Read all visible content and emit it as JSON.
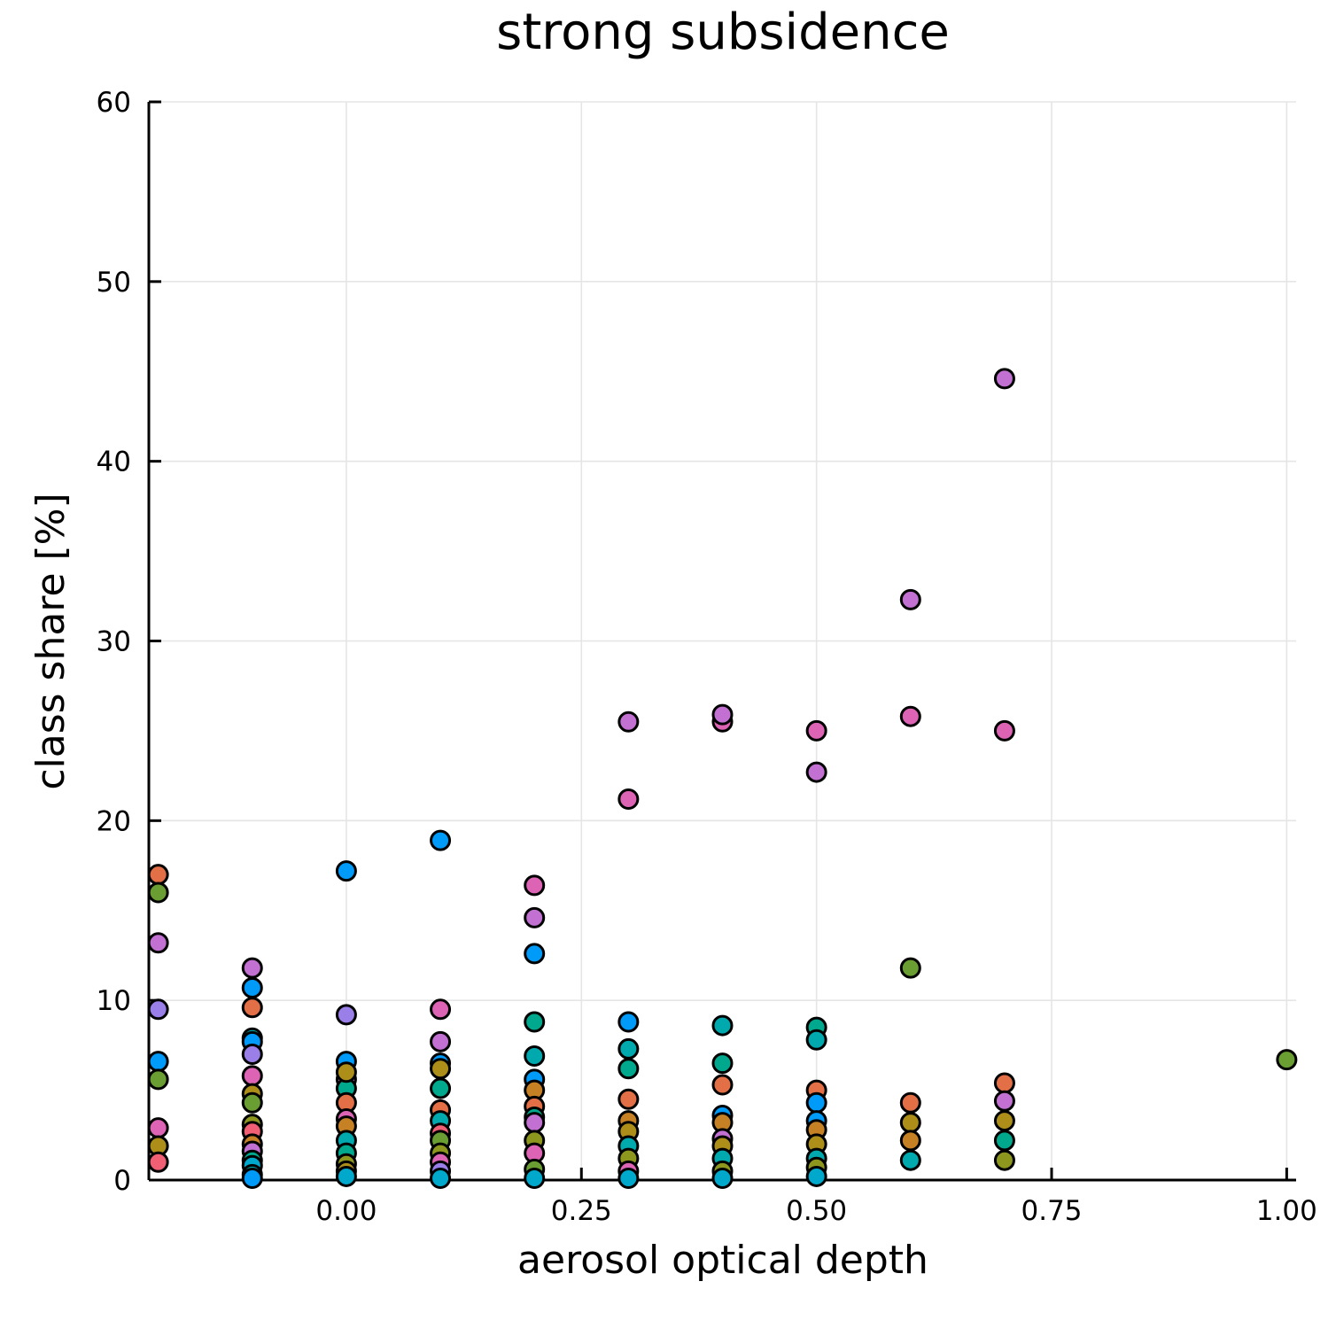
{
  "chart_data": {
    "type": "scatter",
    "title": "strong subsidence",
    "xlabel": "aerosol optical depth",
    "ylabel": "class share [%]",
    "xlim": [
      -0.21,
      1.01
    ],
    "ylim": [
      0,
      60
    ],
    "x_ticks": [
      {
        "value": 0.0,
        "label": "0.00"
      },
      {
        "value": 0.25,
        "label": "0.25"
      },
      {
        "value": 0.5,
        "label": "0.50"
      },
      {
        "value": 0.75,
        "label": "0.75"
      },
      {
        "value": 1.0,
        "label": "1.00"
      }
    ],
    "y_ticks": [
      {
        "value": 0,
        "label": "0"
      },
      {
        "value": 10,
        "label": "10"
      },
      {
        "value": 20,
        "label": "20"
      },
      {
        "value": 30,
        "label": "30"
      },
      {
        "value": 40,
        "label": "40"
      },
      {
        "value": 50,
        "label": "50"
      },
      {
        "value": 60,
        "label": "60"
      }
    ],
    "grid": true,
    "legend": "none",
    "colors": {
      "blue": "#009af9",
      "orange": "#e26f46",
      "green": "#3da44d",
      "purple": "#c271d2",
      "olive": "#ac8e18",
      "teal": "#00a9ad",
      "pink": "#ed5d92",
      "darkgreen": "#c68125",
      "seagreen": "#00a98d",
      "lime": "#8e971d",
      "cyan": "#00a8cb",
      "violet": "#9b7fe9",
      "grass": "#618df6",
      "magenta": "#f05f73",
      "applegreen": "#dd64b5",
      "kelly": "#6b9e32"
    },
    "points": [
      {
        "x": -0.2,
        "y": 17.0,
        "c": "orange"
      },
      {
        "x": -0.2,
        "y": 16.0,
        "c": "kelly"
      },
      {
        "x": -0.2,
        "y": 13.2,
        "c": "purple"
      },
      {
        "x": -0.2,
        "y": 9.5,
        "c": "violet"
      },
      {
        "x": -0.2,
        "y": 6.6,
        "c": "blue"
      },
      {
        "x": -0.2,
        "y": 5.6,
        "c": "kelly"
      },
      {
        "x": -0.2,
        "y": 2.9,
        "c": "applegreen"
      },
      {
        "x": -0.2,
        "y": 1.9,
        "c": "olive"
      },
      {
        "x": -0.2,
        "y": 1.0,
        "c": "magenta"
      },
      {
        "x": -0.1,
        "y": 11.8,
        "c": "purple"
      },
      {
        "x": -0.1,
        "y": 10.7,
        "c": "blue"
      },
      {
        "x": -0.1,
        "y": 9.6,
        "c": "orange"
      },
      {
        "x": -0.1,
        "y": 7.9,
        "c": "teal"
      },
      {
        "x": -0.1,
        "y": 7.7,
        "c": "blue"
      },
      {
        "x": -0.1,
        "y": 7.0,
        "c": "violet"
      },
      {
        "x": -0.1,
        "y": 5.8,
        "c": "applegreen"
      },
      {
        "x": -0.1,
        "y": 4.8,
        "c": "olive"
      },
      {
        "x": -0.1,
        "y": 4.3,
        "c": "kelly"
      },
      {
        "x": -0.1,
        "y": 3.1,
        "c": "lime"
      },
      {
        "x": -0.1,
        "y": 2.7,
        "c": "magenta"
      },
      {
        "x": -0.1,
        "y": 2.0,
        "c": "darkgreen"
      },
      {
        "x": -0.1,
        "y": 1.6,
        "c": "purple"
      },
      {
        "x": -0.1,
        "y": 1.1,
        "c": "seagreen"
      },
      {
        "x": -0.1,
        "y": 0.8,
        "c": "cyan"
      },
      {
        "x": -0.1,
        "y": 0.3,
        "c": "teal"
      },
      {
        "x": -0.1,
        "y": 0.1,
        "c": "blue"
      },
      {
        "x": 0.0,
        "y": 17.2,
        "c": "blue"
      },
      {
        "x": 0.0,
        "y": 9.2,
        "c": "violet"
      },
      {
        "x": 0.0,
        "y": 6.6,
        "c": "blue"
      },
      {
        "x": 0.0,
        "y": 5.6,
        "c": "purple"
      },
      {
        "x": 0.0,
        "y": 5.1,
        "c": "seagreen"
      },
      {
        "x": 0.0,
        "y": 6.0,
        "c": "olive"
      },
      {
        "x": 0.0,
        "y": 4.3,
        "c": "orange"
      },
      {
        "x": 0.0,
        "y": 3.4,
        "c": "applegreen"
      },
      {
        "x": 0.0,
        "y": 3.0,
        "c": "darkgreen"
      },
      {
        "x": 0.0,
        "y": 2.2,
        "c": "teal"
      },
      {
        "x": 0.0,
        "y": 1.5,
        "c": "seagreen"
      },
      {
        "x": 0.0,
        "y": 0.9,
        "c": "lime"
      },
      {
        "x": 0.0,
        "y": 0.5,
        "c": "olive"
      },
      {
        "x": 0.0,
        "y": 0.2,
        "c": "cyan"
      },
      {
        "x": 0.1,
        "y": 18.9,
        "c": "blue"
      },
      {
        "x": 0.1,
        "y": 9.5,
        "c": "applegreen"
      },
      {
        "x": 0.1,
        "y": 7.7,
        "c": "purple"
      },
      {
        "x": 0.1,
        "y": 6.5,
        "c": "blue"
      },
      {
        "x": 0.1,
        "y": 6.2,
        "c": "olive"
      },
      {
        "x": 0.1,
        "y": 5.1,
        "c": "seagreen"
      },
      {
        "x": 0.1,
        "y": 3.9,
        "c": "orange"
      },
      {
        "x": 0.1,
        "y": 3.3,
        "c": "teal"
      },
      {
        "x": 0.1,
        "y": 2.6,
        "c": "magenta"
      },
      {
        "x": 0.1,
        "y": 2.2,
        "c": "kelly"
      },
      {
        "x": 0.1,
        "y": 1.5,
        "c": "lime"
      },
      {
        "x": 0.1,
        "y": 1.0,
        "c": "applegreen"
      },
      {
        "x": 0.1,
        "y": 0.5,
        "c": "violet"
      },
      {
        "x": 0.1,
        "y": 0.1,
        "c": "cyan"
      },
      {
        "x": 0.2,
        "y": 16.4,
        "c": "applegreen"
      },
      {
        "x": 0.2,
        "y": 14.6,
        "c": "purple"
      },
      {
        "x": 0.2,
        "y": 12.6,
        "c": "blue"
      },
      {
        "x": 0.2,
        "y": 8.8,
        "c": "seagreen"
      },
      {
        "x": 0.2,
        "y": 6.9,
        "c": "teal"
      },
      {
        "x": 0.2,
        "y": 5.6,
        "c": "blue"
      },
      {
        "x": 0.2,
        "y": 5.0,
        "c": "darkgreen"
      },
      {
        "x": 0.2,
        "y": 4.1,
        "c": "orange"
      },
      {
        "x": 0.2,
        "y": 3.5,
        "c": "seagreen"
      },
      {
        "x": 0.2,
        "y": 3.2,
        "c": "purple"
      },
      {
        "x": 0.2,
        "y": 2.2,
        "c": "lime"
      },
      {
        "x": 0.2,
        "y": 1.5,
        "c": "applegreen"
      },
      {
        "x": 0.2,
        "y": 0.6,
        "c": "kelly"
      },
      {
        "x": 0.2,
        "y": 0.1,
        "c": "cyan"
      },
      {
        "x": 0.3,
        "y": 25.5,
        "c": "purple"
      },
      {
        "x": 0.3,
        "y": 21.2,
        "c": "applegreen"
      },
      {
        "x": 0.3,
        "y": 8.8,
        "c": "blue"
      },
      {
        "x": 0.3,
        "y": 7.3,
        "c": "teal"
      },
      {
        "x": 0.3,
        "y": 6.2,
        "c": "seagreen"
      },
      {
        "x": 0.3,
        "y": 4.5,
        "c": "orange"
      },
      {
        "x": 0.3,
        "y": 3.3,
        "c": "darkgreen"
      },
      {
        "x": 0.3,
        "y": 2.7,
        "c": "olive"
      },
      {
        "x": 0.3,
        "y": 1.9,
        "c": "teal"
      },
      {
        "x": 0.3,
        "y": 1.2,
        "c": "lime"
      },
      {
        "x": 0.3,
        "y": 0.5,
        "c": "applegreen"
      },
      {
        "x": 0.3,
        "y": 0.1,
        "c": "cyan"
      },
      {
        "x": 0.4,
        "y": 25.5,
        "c": "applegreen"
      },
      {
        "x": 0.4,
        "y": 25.9,
        "c": "purple"
      },
      {
        "x": 0.4,
        "y": 8.6,
        "c": "teal"
      },
      {
        "x": 0.4,
        "y": 6.5,
        "c": "seagreen"
      },
      {
        "x": 0.4,
        "y": 5.3,
        "c": "orange"
      },
      {
        "x": 0.4,
        "y": 3.6,
        "c": "blue"
      },
      {
        "x": 0.4,
        "y": 3.2,
        "c": "darkgreen"
      },
      {
        "x": 0.4,
        "y": 2.3,
        "c": "purple"
      },
      {
        "x": 0.4,
        "y": 1.9,
        "c": "olive"
      },
      {
        "x": 0.4,
        "y": 1.2,
        "c": "teal"
      },
      {
        "x": 0.4,
        "y": 0.5,
        "c": "lime"
      },
      {
        "x": 0.4,
        "y": 0.1,
        "c": "cyan"
      },
      {
        "x": 0.5,
        "y": 25.0,
        "c": "applegreen"
      },
      {
        "x": 0.5,
        "y": 22.7,
        "c": "purple"
      },
      {
        "x": 0.5,
        "y": 8.5,
        "c": "seagreen"
      },
      {
        "x": 0.5,
        "y": 7.8,
        "c": "teal"
      },
      {
        "x": 0.5,
        "y": 5.0,
        "c": "orange"
      },
      {
        "x": 0.5,
        "y": 4.3,
        "c": "blue"
      },
      {
        "x": 0.5,
        "y": 3.3,
        "c": "blue"
      },
      {
        "x": 0.5,
        "y": 2.8,
        "c": "darkgreen"
      },
      {
        "x": 0.5,
        "y": 2.0,
        "c": "olive"
      },
      {
        "x": 0.5,
        "y": 1.2,
        "c": "teal"
      },
      {
        "x": 0.5,
        "y": 0.7,
        "c": "lime"
      },
      {
        "x": 0.5,
        "y": 0.2,
        "c": "cyan"
      },
      {
        "x": 0.6,
        "y": 32.3,
        "c": "purple"
      },
      {
        "x": 0.6,
        "y": 25.8,
        "c": "applegreen"
      },
      {
        "x": 0.6,
        "y": 11.8,
        "c": "kelly"
      },
      {
        "x": 0.6,
        "y": 4.3,
        "c": "orange"
      },
      {
        "x": 0.6,
        "y": 3.2,
        "c": "olive"
      },
      {
        "x": 0.6,
        "y": 2.2,
        "c": "darkgreen"
      },
      {
        "x": 0.6,
        "y": 1.1,
        "c": "teal"
      },
      {
        "x": 0.7,
        "y": 44.6,
        "c": "purple"
      },
      {
        "x": 0.7,
        "y": 25.0,
        "c": "applegreen"
      },
      {
        "x": 0.7,
        "y": 5.4,
        "c": "orange"
      },
      {
        "x": 0.7,
        "y": 4.4,
        "c": "purple"
      },
      {
        "x": 0.7,
        "y": 3.3,
        "c": "olive"
      },
      {
        "x": 0.7,
        "y": 2.2,
        "c": "seagreen"
      },
      {
        "x": 0.7,
        "y": 1.1,
        "c": "lime"
      },
      {
        "x": 1.0,
        "y": 6.7,
        "c": "kelly"
      }
    ]
  }
}
